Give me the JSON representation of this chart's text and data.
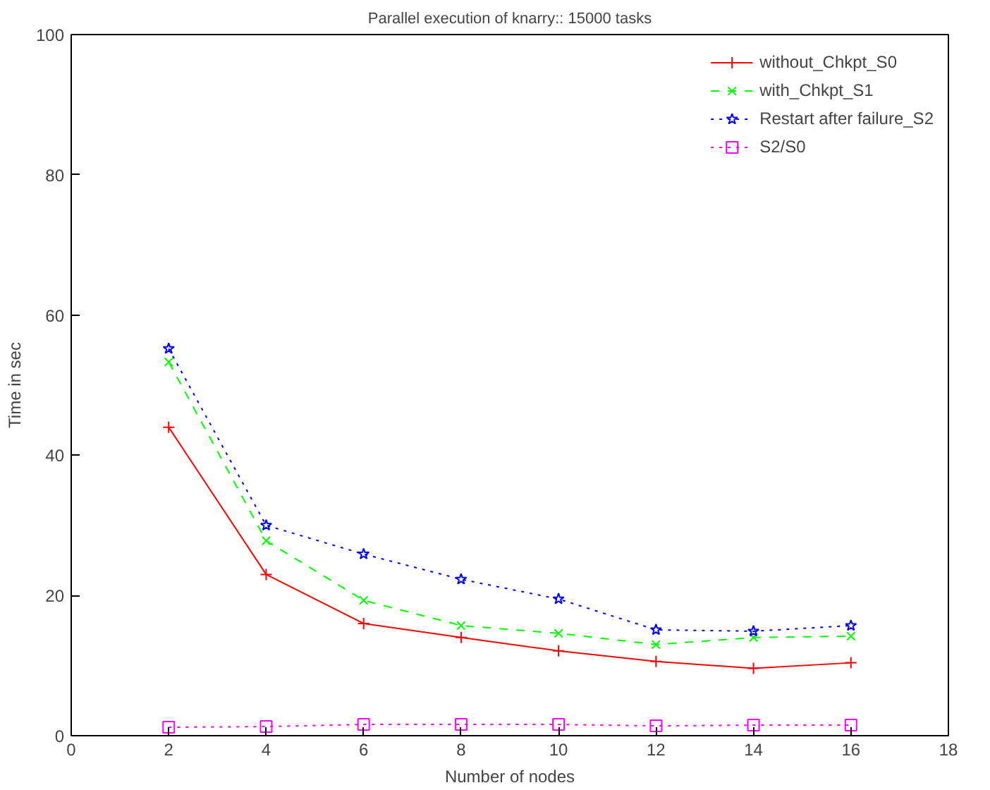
{
  "chart_data": {
    "type": "line",
    "title": "Parallel execution of knarry:: 15000 tasks",
    "xlabel": "Number of nodes",
    "ylabel": "Time in sec",
    "x": [
      2,
      4,
      6,
      8,
      10,
      12,
      14,
      16
    ],
    "xlim": [
      0,
      18
    ],
    "xticks": [
      0,
      2,
      4,
      6,
      8,
      10,
      12,
      14,
      16,
      18
    ],
    "ylim": [
      0,
      100
    ],
    "yticks": [
      0,
      20,
      40,
      60,
      80,
      100
    ],
    "grid": false,
    "legend": "top right",
    "series": [
      {
        "name": "without_Chkpt_S0",
        "color": "#ff0000",
        "marker": "cross",
        "line_style": "solid",
        "values": [
          44,
          23,
          16,
          14,
          12.1,
          10.6,
          9.6,
          10.4
        ]
      },
      {
        "name": "with_Chkpt_S1",
        "color": "#00ff00",
        "marker": "x",
        "line_style": "dashed",
        "values": [
          53.3,
          27.8,
          19.3,
          15.7,
          14.6,
          13,
          14,
          14.2
        ]
      },
      {
        "name": "Restart after failure_S2",
        "color": "#0000ff",
        "marker": "star",
        "line_style": "dotted",
        "values": [
          55.2,
          30,
          25.9,
          22.3,
          19.5,
          15.1,
          14.9,
          15.7
        ]
      },
      {
        "name": "S2/S0",
        "color": "#ff00ff",
        "marker": "square",
        "line_style": "dotted",
        "values": [
          1.2,
          1.3,
          1.6,
          1.6,
          1.6,
          1.4,
          1.5,
          1.5
        ]
      }
    ]
  }
}
